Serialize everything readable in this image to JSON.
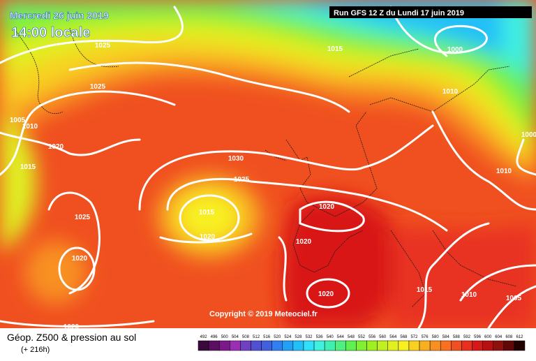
{
  "header": {
    "date": "Mercredi 26 juin 2019",
    "time": "14:00 locale",
    "run": "Run GFS 12 Z du Lundi 17 juin 2019"
  },
  "copyright": "Copyright © 2019 Meteociel.fr",
  "footer": {
    "title": "Géop. Z500 & pression au sol",
    "lead": "(+ 216h)"
  },
  "isobar_labels": [
    "1025",
    "1015",
    "1000",
    "1025",
    "1010",
    "1005",
    "1010",
    "1020",
    "1030",
    "1015",
    "1025",
    "1010",
    "1000",
    "1015",
    "1020",
    "1025",
    "1020",
    "1020",
    "1020",
    "1020",
    "1015",
    "1010",
    "1005",
    "1020"
  ],
  "legend": {
    "labels": [
      "492",
      "496",
      "500",
      "504",
      "508",
      "512",
      "516",
      "520",
      "524",
      "528",
      "532",
      "536",
      "540",
      "544",
      "548",
      "552",
      "556",
      "560",
      "564",
      "568",
      "572",
      "576",
      "580",
      "584",
      "588",
      "592",
      "596",
      "600",
      "604",
      "608",
      "612"
    ],
    "colors": [
      "#3a0a3a",
      "#5a1060",
      "#7a1a8a",
      "#9a30b0",
      "#7040c0",
      "#5050d0",
      "#4060e0",
      "#3080f0",
      "#20a0f8",
      "#20c0f8",
      "#30e0f8",
      "#40f0e0",
      "#40f0b0",
      "#50f080",
      "#60f050",
      "#80f030",
      "#a0f020",
      "#c0f020",
      "#e0f020",
      "#f8f020",
      "#f8d020",
      "#f8b020",
      "#f89020",
      "#f87020",
      "#f05020",
      "#e83020",
      "#d81818",
      "#b81010",
      "#901010",
      "#600808",
      "#200000"
    ]
  }
}
